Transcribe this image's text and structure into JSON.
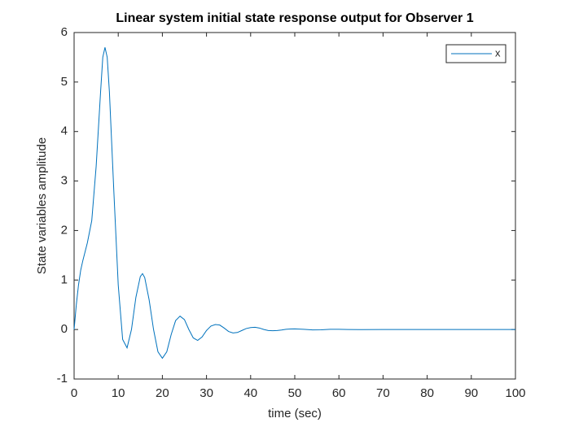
{
  "chart_data": {
    "type": "line",
    "title": "Linear system initial state response output for Observer 1",
    "x_label": "time (sec)",
    "y_label": "State variables amplitude",
    "x": [
      0,
      0.5,
      1,
      1.5,
      2,
      3,
      4,
      5,
      6,
      6.5,
      7,
      7.5,
      8,
      9,
      10,
      11,
      12,
      13,
      14,
      15,
      15.5,
      16,
      17,
      18,
      19,
      20,
      21,
      22,
      23,
      24,
      25,
      26,
      27,
      28,
      29,
      30,
      31,
      32,
      33,
      34,
      35,
      36,
      37,
      38,
      39,
      40,
      41,
      42,
      43,
      44,
      45,
      46,
      47,
      48,
      49,
      50,
      52,
      54,
      56,
      58,
      60,
      62,
      65,
      70,
      80,
      90,
      100
    ],
    "series": [
      {
        "name": "x",
        "color": "#0072bd",
        "values": [
          0,
          0.5,
          0.9,
          1.2,
          1.4,
          1.75,
          2.2,
          3.3,
          4.8,
          5.5,
          5.7,
          5.5,
          4.8,
          2.8,
          0.9,
          -0.2,
          -0.37,
          0,
          0.65,
          1.07,
          1.13,
          1.05,
          0.6,
          0,
          -0.45,
          -0.58,
          -0.45,
          -0.1,
          0.18,
          0.27,
          0.2,
          0,
          -0.17,
          -0.22,
          -0.15,
          -0.02,
          0.07,
          0.1,
          0.09,
          0.03,
          -0.04,
          -0.07,
          -0.06,
          -0.02,
          0.02,
          0.04,
          0.045,
          0.03,
          0,
          -0.02,
          -0.025,
          -0.02,
          -0.01,
          0.005,
          0.01,
          0.012,
          0.005,
          -0.008,
          -0.005,
          0.004,
          0.004,
          0,
          -0.002,
          0,
          0,
          0,
          0
        ]
      }
    ],
    "xlim": [
      0,
      100
    ],
    "xticks": [
      0,
      10,
      20,
      30,
      40,
      50,
      60,
      70,
      80,
      90,
      100
    ],
    "ylim": [
      -1,
      6
    ],
    "yticks": [
      -1,
      0,
      1,
      2,
      3,
      4,
      5,
      6
    ],
    "legend": "northeast"
  }
}
